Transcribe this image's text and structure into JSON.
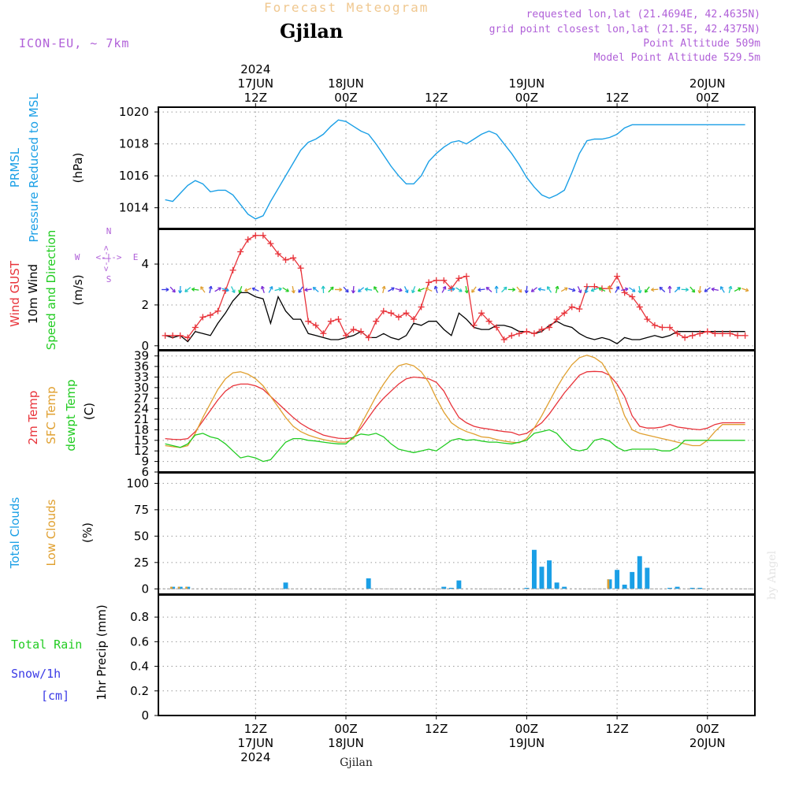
{
  "header": {
    "top_title": "Forecast Meteogram",
    "location": "Gjilan",
    "model": "ICON-EU, ~ 7km",
    "requested": "requested lon,lat (21.4694E, 42.4635N)",
    "grid_point": "grid point closest lon,lat (21.5E, 42.4375N)",
    "point_altitude": "Point Altitude 509m",
    "model_altitude": "Model Point Altitude 529.5m",
    "watermark": "by Angel",
    "bottom_location": "Gjilan"
  },
  "time_axis": {
    "top": [
      {
        "t": 12,
        "lines": [
          "2024",
          "17JUN",
          "12Z"
        ]
      },
      {
        "t": 24,
        "lines": [
          "18JUN",
          "00Z"
        ]
      },
      {
        "t": 36,
        "lines": [
          "12Z"
        ]
      },
      {
        "t": 48,
        "lines": [
          "19JUN",
          "00Z"
        ]
      },
      {
        "t": 60,
        "lines": [
          "12Z"
        ]
      },
      {
        "t": 72,
        "lines": [
          "20JUN",
          "00Z"
        ]
      }
    ],
    "bottom": [
      {
        "t": 12,
        "lines": [
          "12Z",
          "17JUN",
          "2024"
        ]
      },
      {
        "t": 24,
        "lines": [
          "00Z",
          "18JUN"
        ]
      },
      {
        "t": 36,
        "lines": [
          "12Z"
        ]
      },
      {
        "t": 48,
        "lines": [
          "00Z",
          "19JUN"
        ]
      },
      {
        "t": 60,
        "lines": [
          "12Z"
        ]
      },
      {
        "t": 72,
        "lines": [
          "00Z",
          "20JUN"
        ]
      }
    ]
  },
  "labels": {
    "pressure": [
      {
        "text": "PRMSL",
        "color": "#1a9fe6"
      },
      {
        "text": "Pressure Reduced to MSL",
        "color": "#1a9fe6"
      },
      {
        "text": "(hPa)",
        "color": "#000000"
      }
    ],
    "wind": [
      {
        "text": "Wind GUST",
        "color": "#e8333a"
      },
      {
        "text": "10m Wind",
        "color": "#000000"
      },
      {
        "text": "Speed and Direction",
        "color": "#22cc22"
      },
      {
        "text": "(m/s)",
        "color": "#000000"
      }
    ],
    "compass": {
      "n": "N",
      "w": "W",
      "e": "E",
      "s": "S",
      "arrows": "<-|->"
    },
    "temp": [
      {
        "text": "2m Temp",
        "color": "#e8333a"
      },
      {
        "text": "SFC Temp",
        "color": "#e0a030"
      },
      {
        "text": "dewpt Temp",
        "color": "#22cc22"
      },
      {
        "text": "(C)",
        "color": "#000000"
      }
    ],
    "clouds": [
      {
        "text": "Total Clouds",
        "color": "#1a9fe6"
      },
      {
        "text": "Low Clouds",
        "color": "#e0a030"
      },
      {
        "text": "(%)",
        "color": "#000000"
      }
    ],
    "precip": {
      "total_rain": "Total  Rain",
      "snow": "Snow/1h",
      "cm": "[cm]",
      "axis": "1hr Precip (mm)"
    }
  },
  "colors": {
    "pressure": "#1a9fe6",
    "gust": "#e8333a",
    "wind": "#000000",
    "t2m": "#e8333a",
    "tsfc": "#e0a030",
    "dewpt": "#22cc22",
    "total_clouds": "#1a9fe6",
    "low_clouds": "#e0a030",
    "header_purple": "#b060d8",
    "header_orange": "#f0c890"
  },
  "chart_data": [
    {
      "type": "line",
      "panel": "pressure",
      "ylim": [
        1012.7,
        1020.3
      ],
      "yticks": [
        1014,
        1016,
        1018,
        1020
      ],
      "x_hours_from_start": [
        0,
        1,
        2,
        3,
        4,
        5,
        6,
        7,
        8,
        9,
        10,
        11,
        12,
        13,
        14,
        15,
        16,
        17,
        18,
        19,
        20,
        21,
        22,
        23,
        24,
        25,
        26,
        27,
        28,
        29,
        30,
        31,
        32,
        33,
        34,
        35,
        36,
        37,
        38,
        39,
        40,
        41,
        42,
        43,
        44,
        45,
        46,
        47,
        48,
        49,
        50,
        51,
        52,
        53,
        54,
        55,
        56,
        57,
        58,
        59,
        60,
        61,
        62,
        63,
        64,
        65,
        66,
        67,
        68,
        69,
        70,
        71,
        72,
        73,
        74,
        75,
        76,
        77
      ],
      "values": [
        1014.5,
        1014.4,
        1014.9,
        1015.4,
        1015.7,
        1015.5,
        1015.0,
        1015.1,
        1015.1,
        1014.8,
        1014.2,
        1013.6,
        1013.3,
        1013.5,
        1014.4,
        1015.2,
        1016.0,
        1016.8,
        1017.6,
        1018.1,
        1018.3,
        1018.6,
        1019.1,
        1019.5,
        1019.4,
        1019.1,
        1018.8,
        1018.6,
        1018.0,
        1017.3,
        1016.6,
        1016.0,
        1015.5,
        1015.5,
        1016.0,
        1016.9,
        1017.4,
        1017.8,
        1018.1,
        1018.2,
        1018.0,
        1018.3,
        1018.6,
        1018.8,
        1018.6,
        1018.0,
        1017.4,
        1016.7,
        1015.9,
        1015.3,
        1014.8,
        1014.6,
        1014.8,
        1015.1,
        1016.2,
        1017.4,
        1018.2,
        1018.3,
        1018.3,
        1018.4,
        1018.6,
        1019.0,
        1019.2,
        1019.2,
        1019.2,
        1019.2,
        1019.2,
        1019.2,
        1019.2,
        1019.2,
        1019.2,
        1019.2,
        1019.2,
        1019.2,
        1019.2,
        1019.2,
        1019.2,
        1019.2
      ]
    },
    {
      "type": "line",
      "panel": "wind",
      "ylim": [
        -0.2,
        5.7
      ],
      "yticks": [
        0,
        2,
        4
      ],
      "series": [
        {
          "name": "Wind GUST",
          "values": [
            0.5,
            0.5,
            0.5,
            0.4,
            0.9,
            1.4,
            1.5,
            1.7,
            2.7,
            3.7,
            4.6,
            5.2,
            5.4,
            5.4,
            5.0,
            4.5,
            4.2,
            4.3,
            3.8,
            1.2,
            1.0,
            0.6,
            1.2,
            1.3,
            0.5,
            0.8,
            0.7,
            0.4,
            1.2,
            1.7,
            1.6,
            1.4,
            1.6,
            1.3,
            1.9,
            3.1,
            3.2,
            3.2,
            2.8,
            3.3,
            3.4,
            1.0,
            1.6,
            1.2,
            0.9,
            0.3,
            0.5,
            0.6,
            0.7,
            0.6,
            0.8,
            0.9,
            1.3,
            1.6,
            1.9,
            1.8,
            2.9,
            2.9,
            2.8,
            2.8,
            3.4,
            2.6,
            2.4,
            1.9,
            1.3,
            1.0,
            0.9,
            0.9,
            0.6,
            0.4,
            0.5,
            0.6,
            0.7,
            0.6,
            0.6,
            0.6,
            0.5,
            0.5
          ]
        },
        {
          "name": "10m Wind",
          "values": [
            0.5,
            0.4,
            0.5,
            0.2,
            0.7,
            0.6,
            0.5,
            1.1,
            1.6,
            2.2,
            2.6,
            2.6,
            2.4,
            2.3,
            1.1,
            2.4,
            1.7,
            1.3,
            1.3,
            0.6,
            0.5,
            0.4,
            0.3,
            0.3,
            0.4,
            0.5,
            0.7,
            0.4,
            0.4,
            0.6,
            0.4,
            0.3,
            0.5,
            1.1,
            1.0,
            1.2,
            1.2,
            0.8,
            0.5,
            1.6,
            1.3,
            0.9,
            0.8,
            0.8,
            1.0,
            1.0,
            0.9,
            0.7,
            0.7,
            0.6,
            0.7,
            1.0,
            1.2,
            1.0,
            0.9,
            0.6,
            0.4,
            0.3,
            0.4,
            0.3,
            0.1,
            0.4,
            0.3,
            0.3,
            0.4,
            0.5,
            0.4,
            0.5,
            0.7,
            0.7,
            0.7,
            0.7,
            0.7,
            0.7,
            0.7,
            0.7,
            0.7,
            0.7
          ]
        }
      ]
    },
    {
      "type": "line",
      "panel": "temperature",
      "ylim": [
        6,
        40.5
      ],
      "yticks": [
        6,
        9,
        12,
        15,
        18,
        21,
        24,
        27,
        30,
        33,
        36,
        39
      ],
      "series": [
        {
          "name": "2m Temp",
          "values": [
            15.5,
            15.3,
            15.2,
            15.5,
            17.5,
            20.5,
            23.5,
            26.5,
            29.0,
            30.5,
            31.0,
            31.0,
            30.5,
            29.5,
            27.5,
            25.5,
            23.5,
            21.5,
            19.8,
            18.5,
            17.5,
            16.5,
            16.0,
            15.6,
            15.5,
            15.8,
            18.5,
            21.5,
            24.5,
            27.0,
            29.0,
            31.0,
            32.5,
            33.0,
            32.8,
            32.5,
            31.5,
            29.0,
            25.0,
            21.5,
            20.0,
            19.0,
            18.5,
            18.2,
            17.8,
            17.5,
            17.3,
            16.5,
            17.0,
            18.5,
            20.0,
            22.5,
            25.5,
            28.5,
            31.0,
            33.5,
            34.5,
            34.6,
            34.5,
            33.5,
            31.0,
            27.5,
            22.0,
            19.0,
            18.5,
            18.5,
            18.8,
            19.5,
            18.8,
            18.5,
            18.2,
            18.0,
            18.5,
            19.5,
            20.0,
            20.0,
            20.0,
            20.0
          ]
        },
        {
          "name": "SFC Temp",
          "values": [
            13.5,
            13.2,
            13.0,
            13.5,
            17.0,
            21.5,
            25.5,
            29.5,
            32.5,
            34.2,
            34.5,
            33.8,
            32.5,
            30.5,
            27.5,
            24.5,
            21.5,
            19.0,
            17.5,
            16.5,
            15.8,
            15.2,
            14.8,
            14.5,
            14.5,
            15.5,
            19.5,
            23.5,
            27.5,
            31.0,
            34.0,
            36.2,
            36.8,
            36.2,
            34.5,
            31.5,
            27.0,
            23.0,
            20.0,
            18.5,
            17.5,
            16.8,
            16.0,
            15.8,
            15.2,
            14.8,
            14.5,
            14.3,
            15.5,
            18.5,
            22.0,
            26.0,
            30.0,
            33.5,
            36.5,
            38.5,
            39.2,
            38.5,
            37.0,
            33.5,
            28.0,
            22.0,
            18.0,
            17.0,
            16.5,
            16.0,
            15.5,
            15.0,
            14.5,
            14.0,
            13.5,
            13.5,
            15.0,
            17.5,
            19.5,
            19.5,
            19.5,
            19.5
          ]
        },
        {
          "name": "dewpt Temp",
          "values": [
            14.0,
            13.5,
            13.0,
            14.0,
            16.5,
            17.0,
            16.0,
            15.5,
            14.0,
            12.0,
            10.0,
            10.5,
            10.0,
            9.0,
            9.5,
            12.0,
            14.5,
            15.5,
            15.5,
            15.0,
            14.8,
            14.5,
            14.2,
            14.0,
            14.0,
            16.0,
            16.8,
            16.5,
            17.0,
            16.0,
            14.0,
            12.5,
            12.0,
            11.5,
            12.0,
            12.5,
            12.0,
            13.5,
            15.0,
            15.5,
            15.0,
            15.2,
            14.8,
            14.5,
            14.5,
            14.2,
            14.0,
            14.5,
            15.0,
            17.0,
            17.5,
            18.0,
            17.0,
            14.5,
            12.5,
            12.0,
            12.5,
            15.0,
            15.5,
            14.8,
            13.0,
            12.0,
            12.5,
            12.5,
            12.5,
            12.5,
            12.0,
            12.0,
            13.0,
            15.0,
            15.0,
            15.0,
            15.0,
            15.0,
            15.0,
            15.0,
            15.0,
            15.0
          ]
        }
      ]
    },
    {
      "type": "bar",
      "panel": "clouds",
      "ylim": [
        -5,
        110
      ],
      "yticks": [
        0,
        25,
        50,
        75,
        100
      ],
      "series": [
        {
          "name": "Total Clouds",
          "bars": [
            {
              "t": 1,
              "v": 2
            },
            {
              "t": 2,
              "v": 2
            },
            {
              "t": 3,
              "v": 2
            },
            {
              "t": 16,
              "v": 6
            },
            {
              "t": 27,
              "v": 10
            },
            {
              "t": 37,
              "v": 2
            },
            {
              "t": 38,
              "v": 1
            },
            {
              "t": 39,
              "v": 8
            },
            {
              "t": 48,
              "v": 1
            },
            {
              "t": 49,
              "v": 37
            },
            {
              "t": 50,
              "v": 21
            },
            {
              "t": 51,
              "v": 27
            },
            {
              "t": 52,
              "v": 6
            },
            {
              "t": 53,
              "v": 2
            },
            {
              "t": 59,
              "v": 9
            },
            {
              "t": 60,
              "v": 18
            },
            {
              "t": 61,
              "v": 4
            },
            {
              "t": 62,
              "v": 16
            },
            {
              "t": 63,
              "v": 31
            },
            {
              "t": 64,
              "v": 20
            },
            {
              "t": 67,
              "v": 1
            },
            {
              "t": 68,
              "v": 2
            },
            {
              "t": 70,
              "v": 1
            },
            {
              "t": 71,
              "v": 1
            }
          ]
        },
        {
          "name": "Low Clouds",
          "bars": [
            {
              "t": 1,
              "v": 2
            },
            {
              "t": 2,
              "v": 2
            },
            {
              "t": 3,
              "v": 2
            },
            {
              "t": 59,
              "v": 9
            }
          ]
        }
      ]
    },
    {
      "type": "line",
      "panel": "precip",
      "ylim": [
        0,
        0.98
      ],
      "yticks": [
        0,
        0.2,
        0.4,
        0.6,
        0.8
      ],
      "series": [
        {
          "name": "1hr Precip",
          "values": [
            0,
            0,
            0,
            0,
            0,
            0,
            0,
            0,
            0,
            0,
            0,
            0,
            0,
            0,
            0,
            0,
            0,
            0,
            0,
            0,
            0,
            0,
            0,
            0,
            0,
            0,
            0,
            0,
            0,
            0,
            0,
            0,
            0,
            0,
            0,
            0,
            0,
            0,
            0,
            0,
            0,
            0,
            0,
            0,
            0,
            0,
            0,
            0,
            0,
            0,
            0,
            0,
            0,
            0,
            0,
            0,
            0,
            0,
            0,
            0,
            0,
            0,
            0,
            0,
            0,
            0,
            0,
            0,
            0,
            0,
            0,
            0,
            0,
            0,
            0,
            0,
            0,
            0
          ]
        }
      ]
    }
  ]
}
